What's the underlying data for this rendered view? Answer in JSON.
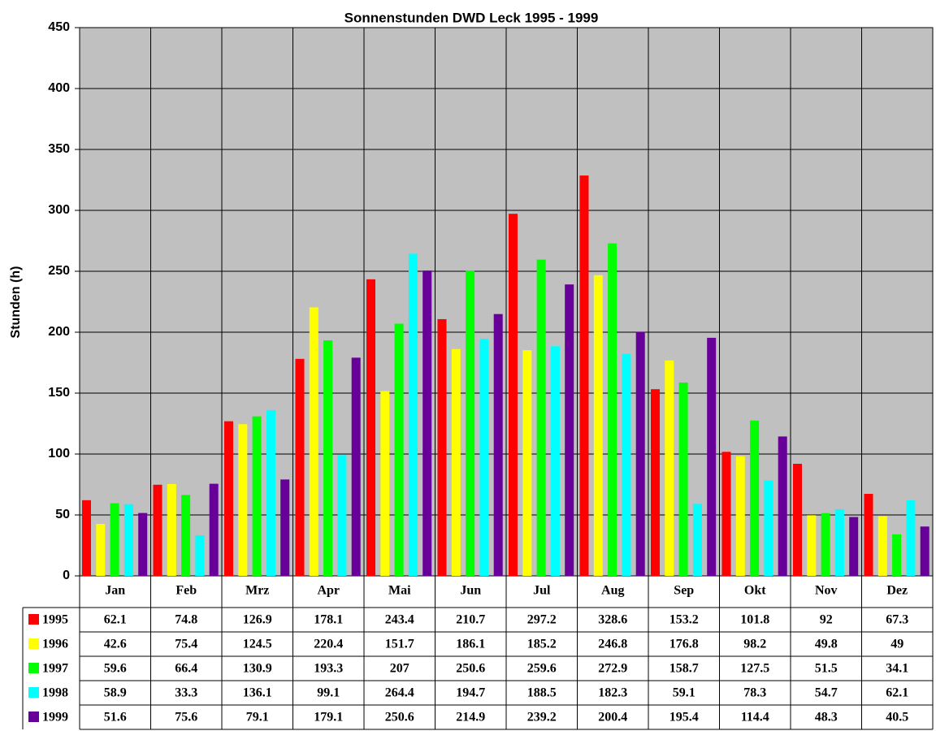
{
  "chart_data": {
    "type": "bar",
    "title": "Sonnenstunden DWD Leck 1995 - 1999",
    "y_label": "Stunden (h)",
    "categories": [
      "Jan",
      "Feb",
      "Mrz",
      "Apr",
      "Mai",
      "Jun",
      "Jul",
      "Aug",
      "Sep",
      "Okt",
      "Nov",
      "Dez"
    ],
    "series": [
      {
        "name": "1995",
        "color": "#ff0000",
        "values": [
          62.1,
          74.8,
          126.9,
          178.1,
          243.4,
          210.7,
          297.2,
          328.6,
          153.2,
          101.8,
          92,
          67.3
        ]
      },
      {
        "name": "1996",
        "color": "#ffff00",
        "values": [
          42.6,
          75.4,
          124.5,
          220.4,
          151.7,
          186.1,
          185.2,
          246.8,
          176.8,
          98.2,
          49.8,
          49
        ]
      },
      {
        "name": "1997",
        "color": "#00ff00",
        "values": [
          59.6,
          66.4,
          130.9,
          193.3,
          207,
          250.6,
          259.6,
          272.9,
          158.7,
          127.5,
          51.5,
          34.1
        ]
      },
      {
        "name": "1998",
        "color": "#00ffff",
        "values": [
          58.9,
          33.3,
          136.1,
          99.1,
          264.4,
          194.7,
          188.5,
          182.3,
          59.1,
          78.3,
          54.7,
          62.1
        ]
      },
      {
        "name": "1999",
        "color": "#660099",
        "values": [
          51.6,
          75.6,
          79.1,
          179.1,
          250.6,
          214.9,
          239.2,
          200.4,
          195.4,
          114.4,
          48.3,
          40.5
        ]
      }
    ],
    "ylim": [
      0,
      450
    ],
    "yticks": [
      0,
      50,
      100,
      150,
      200,
      250,
      300,
      350,
      400,
      450
    ],
    "grid": true
  }
}
